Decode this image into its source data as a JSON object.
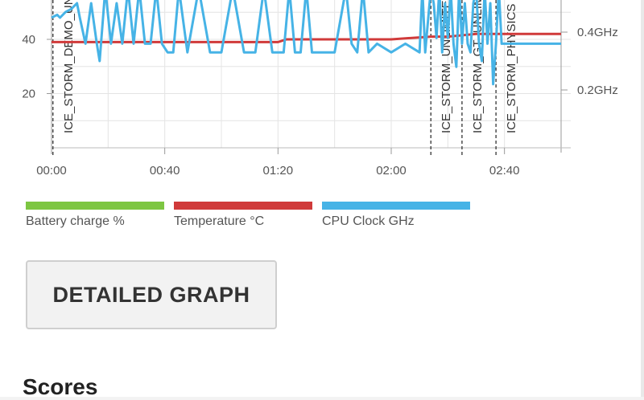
{
  "chart_data": {
    "type": "line",
    "y_left_ticks": [
      "40",
      "20"
    ],
    "y_right_ticks": [
      "0.4GHz",
      "0.2GHz"
    ],
    "x_ticks": [
      "00:00",
      "00:40",
      "01:20",
      "02:00",
      "02:40"
    ],
    "xlim_minutes": [
      0,
      180
    ],
    "ylim_left": [
      0,
      60
    ],
    "ylim_right_ghz": [
      0,
      0.55
    ],
    "grid": true,
    "event_markers": [
      {
        "label": "ICE_STORM_DEMO_UNLIMITED",
        "minute": 0.5
      },
      {
        "label": "ICE_STORM_UNLIMITED",
        "minute": 134
      },
      {
        "label": "ICE_STORM_GT_UNLIMITED",
        "minute": 145
      },
      {
        "label": "ICE_STORM_PHYSICS",
        "minute": 157
      }
    ],
    "series": [
      {
        "name": "Temperature °C",
        "color": "#d03a3a",
        "x": [
          0,
          40,
          80,
          83,
          100,
          120,
          134,
          140,
          150,
          160,
          180
        ],
        "y": [
          39,
          39,
          39,
          40,
          40,
          40,
          41,
          41,
          42,
          42,
          42
        ]
      },
      {
        "name": "CPU Clock GHz",
        "color": "#46b3e6",
        "x": [
          0,
          2,
          3,
          5,
          7,
          9,
          10,
          12,
          14,
          16,
          17,
          19,
          21,
          23,
          25,
          27,
          29,
          31,
          33,
          35,
          37,
          39,
          41,
          43,
          45,
          48,
          52,
          56,
          60,
          64,
          68,
          72,
          75,
          78,
          82,
          84,
          86,
          88,
          90,
          92,
          95,
          100,
          104,
          106,
          108,
          110,
          112,
          115,
          120,
          125,
          130,
          131,
          132,
          134,
          135,
          136,
          137,
          138,
          139,
          140,
          141,
          142,
          143,
          144,
          145,
          146,
          147,
          148,
          149,
          150,
          151,
          152,
          153,
          154,
          155,
          156,
          157,
          158,
          159,
          160,
          162,
          165,
          170,
          175,
          180
        ],
        "y": [
          0.45,
          0.46,
          0.45,
          0.47,
          0.48,
          0.5,
          0.45,
          0.36,
          0.5,
          0.36,
          0.3,
          0.55,
          0.36,
          0.5,
          0.36,
          0.55,
          0.36,
          0.55,
          0.36,
          0.36,
          0.55,
          0.36,
          0.33,
          0.33,
          0.55,
          0.33,
          0.55,
          0.33,
          0.33,
          0.55,
          0.33,
          0.33,
          0.55,
          0.33,
          0.33,
          0.55,
          0.33,
          0.33,
          0.55,
          0.33,
          0.33,
          0.33,
          0.55,
          0.36,
          0.33,
          0.55,
          0.33,
          0.36,
          0.33,
          0.36,
          0.33,
          0.55,
          0.33,
          0.55,
          0.5,
          0.38,
          0.55,
          0.33,
          0.5,
          0.38,
          0.55,
          0.36,
          0.28,
          0.55,
          0.36,
          0.5,
          0.36,
          0.33,
          0.5,
          0.55,
          0.36,
          0.3,
          0.55,
          0.36,
          0.5,
          0.22,
          0.36,
          0.55,
          0.36,
          0.36,
          0.36,
          0.36,
          0.36,
          0.36,
          0.36
        ]
      }
    ]
  },
  "legend": [
    {
      "label": "Battery charge %",
      "color": "#7dc642"
    },
    {
      "label": "Temperature °C",
      "color": "#d03a3a"
    },
    {
      "label": "CPU Clock GHz",
      "color": "#46b3e6"
    }
  ],
  "detailed_graph_label": "DETAILED GRAPH",
  "scores_title": "Scores"
}
